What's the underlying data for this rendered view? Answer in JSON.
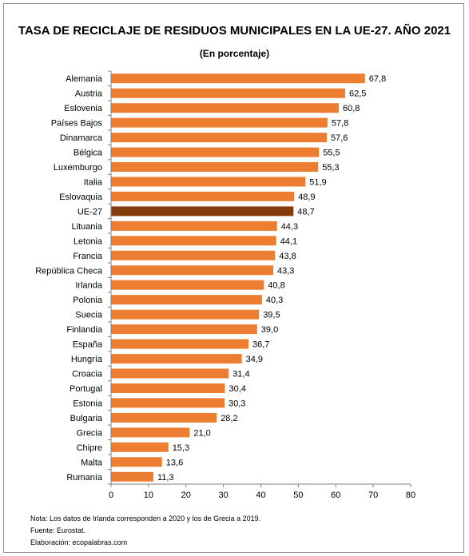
{
  "colors": {
    "bar": "#ED7D31",
    "highlight": "#843C0C",
    "axis": "#808080"
  },
  "chart_data": {
    "type": "bar",
    "orientation": "horizontal",
    "title": "TASA DE RECICLAJE DE RESIDUOS MUNICIPALES EN LA UE-27. AÑO 2021",
    "subtitle": "(En porcentaje)",
    "categories": [
      "Alemania",
      "Austria",
      "Eslovenia",
      "Países Bajos",
      "Dinamarca",
      "Bélgica",
      "Luxemburgo",
      "Italia",
      "Eslovaquia",
      "UE-27",
      "Lituania",
      "Letonia",
      "Francia",
      "República Checa",
      "Irlanda",
      "Polonia",
      "Suecia",
      "Finlandia",
      "España",
      "Hungría",
      "Croacia",
      "Portugal",
      "Estonia",
      "Bulgaria",
      "Grecia",
      "Chipre",
      "Malta",
      "Rumanía"
    ],
    "values": [
      67.8,
      62.5,
      60.8,
      57.8,
      57.6,
      55.5,
      55.3,
      51.9,
      48.9,
      48.7,
      44.3,
      44.1,
      43.8,
      43.3,
      40.8,
      40.3,
      39.5,
      39.0,
      36.7,
      34.9,
      31.4,
      30.4,
      30.3,
      28.2,
      21.0,
      15.3,
      13.6,
      11.3
    ],
    "value_labels": [
      "67,8",
      "62,5",
      "60,8",
      "57,8",
      "57,6",
      "55,5",
      "55,3",
      "51,9",
      "48,9",
      "48,7",
      "44,3",
      "44,1",
      "43,8",
      "43,3",
      "40,8",
      "40,3",
      "39,5",
      "39,0",
      "36,7",
      "34,9",
      "31,4",
      "30,4",
      "30,3",
      "28,2",
      "21,0",
      "15,3",
      "13,6",
      "11,3"
    ],
    "highlight_category": "UE-27",
    "xlim": [
      0,
      80
    ],
    "xticks": [
      0,
      10,
      20,
      30,
      40,
      50,
      60,
      70,
      80
    ],
    "grid": false,
    "legend": false
  },
  "notes": {
    "nota": "Nota: Los datos  de Irlanda corresponden a 2020 y los de Grecia a 2019.",
    "fuente": "Fuente: Eurostat.",
    "elaboracion": "Elaboración: ecopalabras.com"
  }
}
